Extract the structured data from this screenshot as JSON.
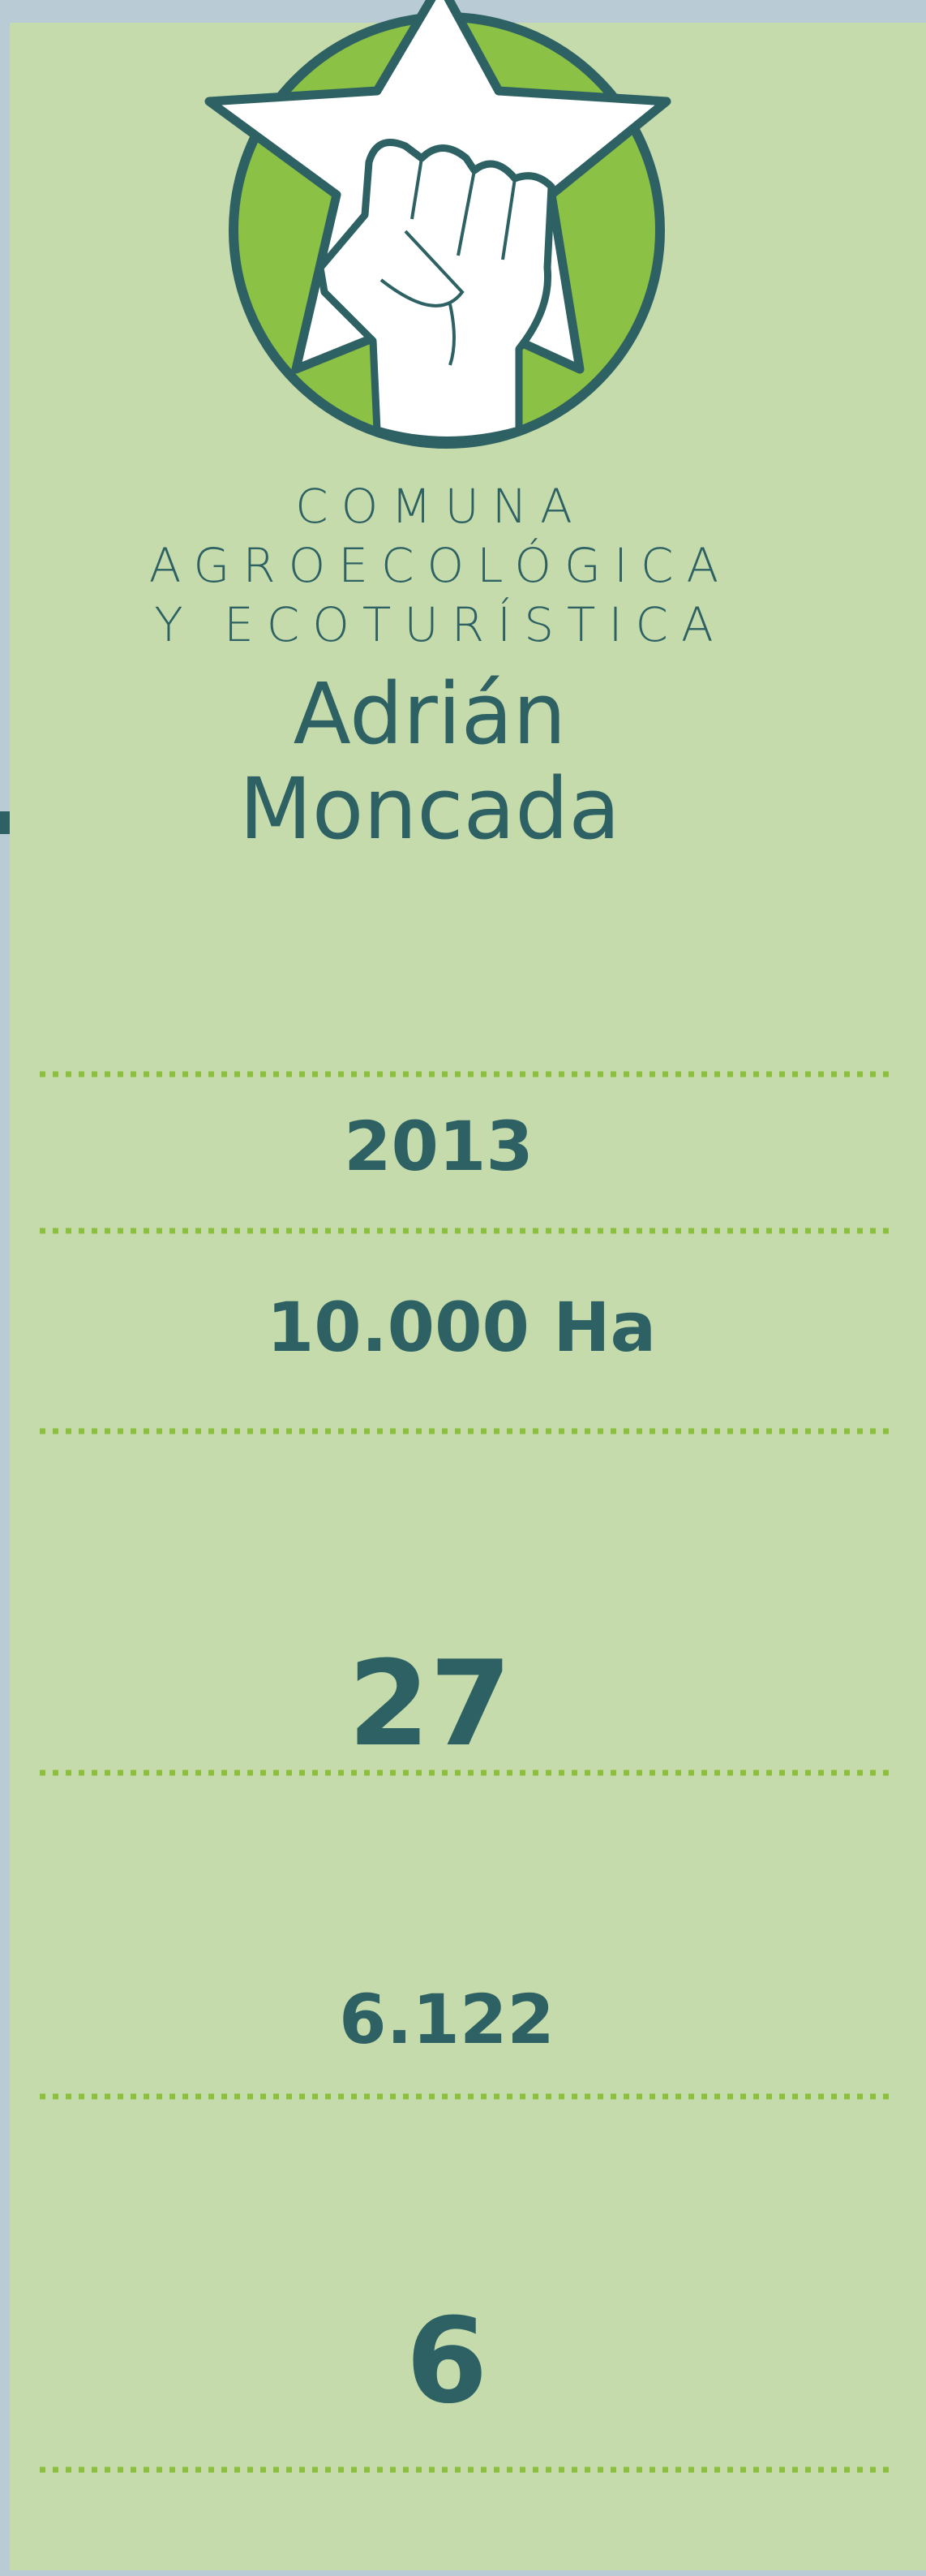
{
  "header": {
    "lines": [
      "COMUNA",
      "AGROECOLÓGICA",
      "Y ECOTURÍSTICA"
    ],
    "name": [
      "Adrián",
      "Moncada"
    ]
  },
  "stats": [
    "2013",
    "10.000 Ha",
    "27",
    "6.122",
    "6"
  ]
}
